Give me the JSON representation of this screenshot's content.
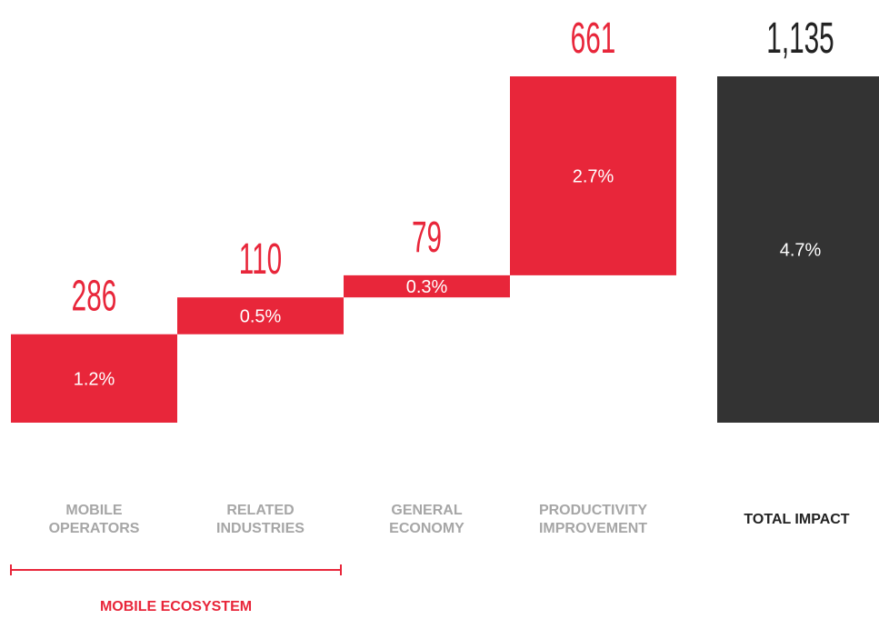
{
  "chart_data": {
    "type": "waterfall",
    "categories": [
      "MOBILE OPERATORS",
      "RELATED INDUSTRIES",
      "GENERAL ECONOMY",
      "PRODUCTIVITY IMPROVEMENT",
      "TOTAL IMPACT"
    ],
    "values": [
      1.2,
      0.5,
      0.3,
      2.7,
      4.7
    ],
    "value_labels": [
      "1.2%",
      "0.5%",
      "0.3%",
      "2.7%",
      "4.7%"
    ],
    "amounts": [
      286,
      110,
      79,
      661,
      {
        "value": 1135,
        "label": "1,135"
      }
    ],
    "color": "#e8263a",
    "total_color": "#333333",
    "group": {
      "label": "MOBILE ECOSYSTEM",
      "from": 0,
      "to": 1
    }
  }
}
